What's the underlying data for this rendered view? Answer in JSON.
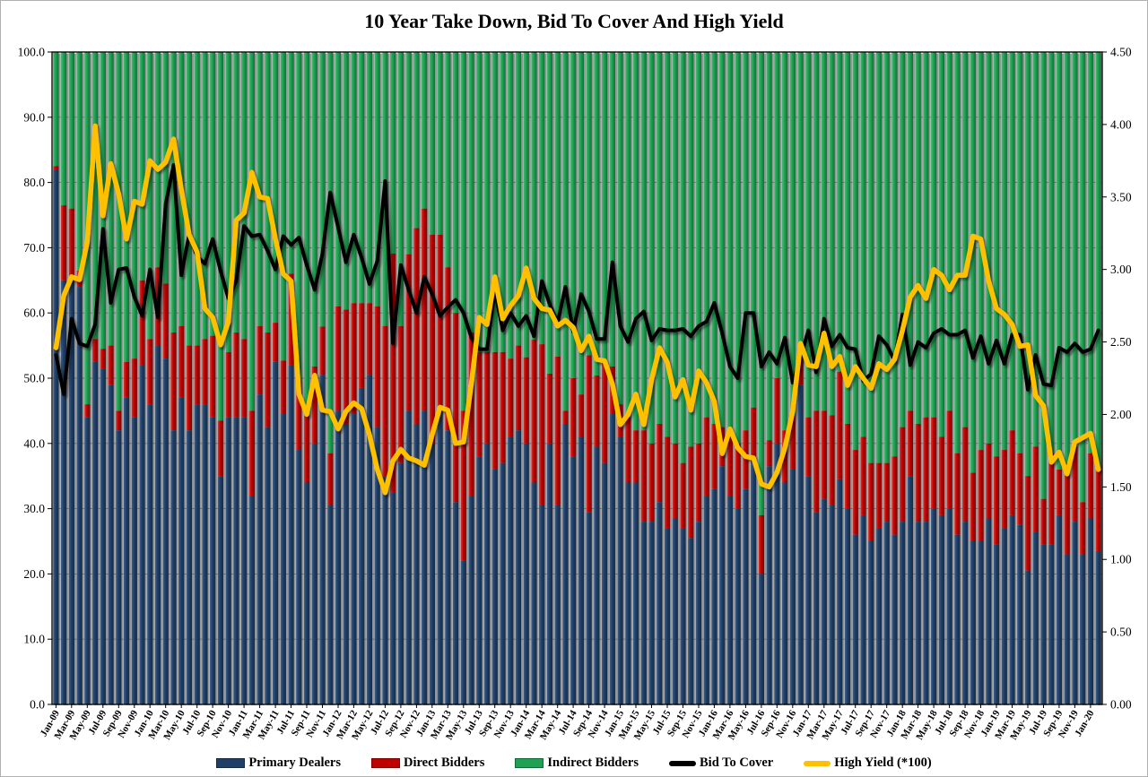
{
  "legend": [
    {
      "label": "Primary Dealers",
      "swatch": "bar",
      "color": "#1f3f67"
    },
    {
      "label": "Direct Bidders",
      "swatch": "bar",
      "color": "#c00000"
    },
    {
      "label": "Indirect Bidders",
      "swatch": "bar",
      "color": "#1ea152"
    },
    {
      "label": "Bid To Cover",
      "swatch": "line",
      "color": "#000000"
    },
    {
      "label": "High Yield (*100)",
      "swatch": "line",
      "color": "#ffc000"
    }
  ],
  "chart_data": {
    "type": "bar",
    "subtype": "stacked-bars-with-lines",
    "title": "10 Year Take Down, Bid To Cover And High Yield",
    "n_points": 134,
    "x_tick_every": 2,
    "x_tick_labels": [
      "Jan-09",
      "Mar-09",
      "May-09",
      "Jul-09",
      "Sep-09",
      "Nov-09",
      "Jan-10",
      "Mar-10",
      "May-10",
      "Jul-10",
      "Sep-10",
      "Nov-10",
      "Jan-11",
      "Mar-11",
      "May-11",
      "Jul-11",
      "Sep-11",
      "Nov-11",
      "Jan-12",
      "Mar-12",
      "May-12",
      "Jul-12",
      "Sep-12",
      "Nov-12",
      "Jan-13",
      "Mar-13",
      "May-13",
      "Jul-13",
      "Sep-13",
      "Nov-13",
      "Jan-14",
      "Mar-14",
      "May-14",
      "Jul-14",
      "Sep-14",
      "Nov-14",
      "Jan-15",
      "Mar-15",
      "May-15",
      "Jul-15",
      "Sep-15",
      "Nov-15",
      "Jan-16",
      "Mar-16",
      "May-16",
      "Jul-16",
      "Sep-16",
      "Nov-16",
      "Jan-17",
      "Mar-17",
      "May-17",
      "Jul-17",
      "Sep-17",
      "Nov-17",
      "Jan-18",
      "Mar-18",
      "May-18",
      "Jul-18",
      "Sep-18",
      "Nov-18",
      "Jan-19",
      "Mar-19",
      "May-19",
      "Jul-19",
      "Sep-19",
      "Nov-19",
      "Jan-20"
    ],
    "left_axis": {
      "min": 0,
      "max": 100,
      "step": 10,
      "labels": [
        "100.0",
        "90.0",
        "80.0",
        "70.0",
        "60.0",
        "50.0",
        "40.0",
        "30.0",
        "20.0",
        "10.0",
        "0.0"
      ]
    },
    "right_axis": {
      "min": 0,
      "max": 4.5,
      "step": 0.5,
      "labels": [
        "4.50",
        "4.00",
        "3.50",
        "3.00",
        "2.50",
        "2.00",
        "1.50",
        "1.00",
        "0.50",
        "0.00"
      ]
    },
    "grid": true,
    "legend_position": "bottom",
    "plot_bg": "#d8d8d8",
    "series": [
      {
        "name": "Primary Dealers",
        "type": "bar",
        "axis": "left",
        "color": "#1f3f67",
        "values": [
          82,
          65,
          65,
          64,
          44,
          52.5,
          51.5,
          49,
          42,
          47,
          44,
          52,
          46,
          55,
          53,
          42,
          47,
          42,
          46,
          46,
          44,
          35,
          44,
          44,
          44,
          32,
          47.5,
          42.5,
          52.5,
          44.5,
          52,
          39,
          34,
          40,
          50.5,
          30.5,
          45,
          43,
          44.5,
          48.5,
          50.5,
          42.5,
          35,
          32.5,
          37,
          45,
          43,
          45,
          40,
          45,
          42,
          31,
          22,
          32,
          38,
          40,
          36,
          37,
          41,
          42,
          40,
          34,
          30.5,
          40,
          30.5,
          43,
          38,
          41,
          29.5,
          39.5,
          37,
          44.5,
          41,
          34,
          34,
          28,
          28,
          31,
          27,
          28.5,
          27,
          25.5,
          28,
          32,
          33,
          36.5,
          32,
          30,
          33,
          37.5,
          20,
          36.5,
          40,
          34,
          36,
          49,
          35,
          29.5,
          31.5,
          30.5,
          34.5,
          30,
          26,
          29,
          25,
          27,
          28,
          26,
          28,
          35,
          28,
          28,
          30,
          29,
          30,
          26,
          28,
          25,
          25,
          28.5,
          24.5,
          27,
          29,
          27.5,
          20.5,
          26.5,
          24.5,
          24.5,
          29,
          23,
          28,
          23,
          28.5,
          23.5
        ]
      },
      {
        "name": "Direct Bidders",
        "type": "bar",
        "axis": "left",
        "color": "#c00000",
        "values": [
          0.5,
          11.5,
          11,
          2.5,
          2,
          3.5,
          3,
          6,
          3,
          5.5,
          9,
          13,
          10,
          12,
          11.5,
          15,
          11,
          13,
          9,
          10,
          12.5,
          8.5,
          10,
          13,
          12,
          13,
          10.5,
          14.5,
          6,
          8.2,
          14,
          10.6,
          10.3,
          11.8,
          7.4,
          8,
          16,
          17.5,
          17,
          13,
          11,
          18.5,
          23,
          36.6,
          21,
          24,
          30,
          31,
          32,
          27,
          25,
          29,
          23,
          25,
          16,
          14,
          18,
          17,
          12,
          13,
          13.2,
          21.9,
          24.7,
          10.7,
          22.8,
          2,
          12,
          6.5,
          24,
          10.9,
          15.5,
          7.3,
          5,
          10,
          8,
          14,
          12,
          12,
          14,
          11.5,
          10,
          14,
          12,
          12,
          10,
          6,
          10,
          10,
          9,
          8,
          9,
          4,
          10,
          8,
          8.2,
          4,
          9,
          15.5,
          13.5,
          13.8,
          16.5,
          13,
          13,
          12,
          12,
          10,
          9,
          12,
          14.5,
          10,
          15,
          16,
          14,
          12,
          15,
          12.5,
          14.5,
          10.5,
          14,
          11.5,
          13.5,
          12,
          13,
          11,
          14.5,
          13,
          7,
          14,
          7,
          14,
          11.5,
          8,
          10,
          13
        ]
      },
      {
        "name": "Indirect Bidders",
        "type": "bar",
        "axis": "left",
        "color": "#1ea152",
        "values": [
          17.5,
          23.5,
          24,
          33.5,
          54,
          44,
          45.5,
          45,
          55,
          47.5,
          47,
          35,
          44,
          33,
          35.5,
          43,
          42,
          45,
          45,
          44,
          43.5,
          56.5,
          46,
          43,
          44,
          55,
          42,
          43,
          41.5,
          47.3,
          34,
          50.4,
          55.7,
          48.2,
          42.1,
          61.5,
          39,
          39.5,
          38.5,
          38.5,
          38.5,
          39,
          42,
          30.9,
          42,
          31,
          27,
          24,
          28,
          28,
          33,
          40,
          55,
          43,
          46,
          46,
          46,
          46,
          47,
          45,
          46.8,
          44.1,
          44.8,
          49.3,
          46.7,
          55,
          50,
          52.5,
          46.5,
          49.6,
          47.5,
          48.2,
          54,
          56,
          58,
          58,
          60,
          57,
          59,
          60,
          63,
          60.5,
          60,
          56,
          57,
          57.5,
          58,
          60,
          58,
          54.5,
          71,
          59.5,
          50,
          58,
          55.8,
          47,
          56,
          55,
          55,
          55.7,
          49,
          57,
          61,
          59,
          63,
          63,
          63,
          62,
          57.5,
          55,
          57,
          56,
          56,
          59,
          55,
          61.5,
          57.5,
          64.5,
          61,
          60,
          62,
          61,
          58,
          61.5,
          65,
          60.5,
          68.5,
          61.5,
          64,
          63,
          60.5,
          69,
          61.5,
          63.5
        ]
      },
      {
        "name": "Bid To Cover",
        "type": "line",
        "axis": "right",
        "color": "#000000",
        "values": [
          2.41,
          2.14,
          2.66,
          2.49,
          2.47,
          2.62,
          3.28,
          2.77,
          3.0,
          3.01,
          2.81,
          2.68,
          3.0,
          2.67,
          3.45,
          3.72,
          2.96,
          3.24,
          3.09,
          3.04,
          3.21,
          2.99,
          2.8,
          2.92,
          3.3,
          3.23,
          3.24,
          3.13,
          3.0,
          3.23,
          3.17,
          3.22,
          3.03,
          2.86,
          3.11,
          3.53,
          3.29,
          3.05,
          3.24,
          3.08,
          2.9,
          3.06,
          3.61,
          2.49,
          3.03,
          2.86,
          2.7,
          2.95,
          2.83,
          2.68,
          2.74,
          2.79,
          2.7,
          2.53,
          2.45,
          2.45,
          2.86,
          2.58,
          2.7,
          2.61,
          2.68,
          2.54,
          2.92,
          2.76,
          2.63,
          2.88,
          2.57,
          2.83,
          2.71,
          2.52,
          2.52,
          3.05,
          2.61,
          2.5,
          2.66,
          2.71,
          2.51,
          2.59,
          2.58,
          2.58,
          2.59,
          2.54,
          2.61,
          2.64,
          2.77,
          2.56,
          2.33,
          2.25,
          2.7,
          2.7,
          2.33,
          2.43,
          2.35,
          2.53,
          2.22,
          2.39,
          2.58,
          2.29,
          2.66,
          2.47,
          2.55,
          2.46,
          2.45,
          2.23,
          2.28,
          2.54,
          2.48,
          2.37,
          2.69,
          2.34,
          2.5,
          2.46,
          2.56,
          2.59,
          2.55,
          2.55,
          2.58,
          2.39,
          2.54,
          2.35,
          2.51,
          2.35,
          2.55,
          2.55,
          2.17,
          2.41,
          2.21,
          2.2,
          2.46,
          2.43,
          2.49,
          2.43,
          2.45,
          2.58
        ]
      },
      {
        "name": "High Yield (*100)",
        "type": "line",
        "axis": "right",
        "color": "#ffc000",
        "values": [
          2.46,
          2.82,
          2.95,
          2.93,
          3.19,
          3.99,
          3.37,
          3.73,
          3.52,
          3.21,
          3.47,
          3.45,
          3.75,
          3.69,
          3.74,
          3.9,
          3.55,
          3.24,
          3.12,
          2.73,
          2.67,
          2.48,
          2.64,
          3.34,
          3.39,
          3.67,
          3.5,
          3.49,
          3.21,
          2.97,
          2.92,
          2.14,
          2.0,
          2.27,
          2.03,
          2.02,
          1.9,
          2.02,
          2.08,
          2.04,
          1.86,
          1.62,
          1.46,
          1.68,
          1.76,
          1.7,
          1.68,
          1.65,
          1.86,
          2.05,
          2.03,
          1.8,
          1.81,
          2.21,
          2.67,
          2.62,
          2.95,
          2.66,
          2.75,
          2.82,
          3.01,
          2.8,
          2.73,
          2.72,
          2.61,
          2.65,
          2.6,
          2.44,
          2.54,
          2.38,
          2.37,
          2.21,
          1.93,
          2.0,
          2.14,
          1.93,
          2.24,
          2.46,
          2.36,
          2.12,
          2.24,
          2.03,
          2.3,
          2.22,
          2.09,
          1.73,
          1.9,
          1.77,
          1.71,
          1.7,
          1.52,
          1.5,
          1.6,
          1.77,
          2.02,
          2.49,
          2.34,
          2.33,
          2.56,
          2.33,
          2.4,
          2.2,
          2.33,
          2.25,
          2.18,
          2.35,
          2.31,
          2.38,
          2.58,
          2.81,
          2.89,
          2.8,
          3.0,
          2.96,
          2.86,
          2.96,
          2.96,
          3.23,
          3.21,
          2.92,
          2.73,
          2.69,
          2.62,
          2.47,
          2.48,
          2.13,
          2.06,
          1.67,
          1.74,
          1.59,
          1.81,
          1.84,
          1.87,
          1.62
        ]
      }
    ]
  }
}
